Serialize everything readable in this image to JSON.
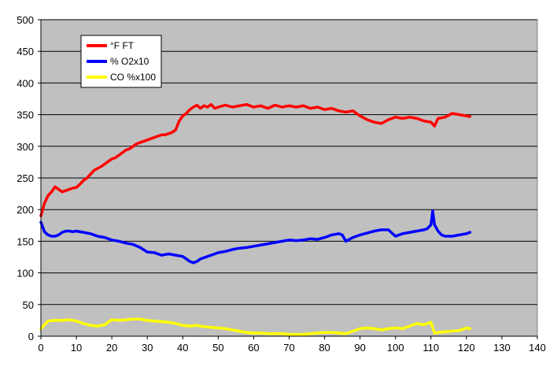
{
  "chart_data": {
    "type": "line",
    "title": "",
    "xlabel": "",
    "ylabel": "",
    "xlim": [
      0,
      140
    ],
    "ylim": [
      0,
      500
    ],
    "x_ticks": [
      0,
      10,
      20,
      30,
      40,
      50,
      60,
      70,
      80,
      90,
      100,
      110,
      120,
      130,
      140
    ],
    "y_ticks": [
      0,
      50,
      100,
      150,
      200,
      250,
      300,
      350,
      400,
      450,
      500
    ],
    "grid": "horizontal",
    "legend_position": "top-left",
    "plot_background": "#c0c0c0",
    "series": [
      {
        "name": "°F FT",
        "color": "#ff0000",
        "x": [
          0,
          1,
          2,
          3,
          4,
          5,
          6,
          7,
          8,
          9,
          10,
          11,
          12,
          13,
          14,
          15,
          16,
          17,
          18,
          19,
          20,
          21,
          22,
          23,
          24,
          25,
          26,
          27,
          28,
          29,
          30,
          31,
          32,
          33,
          34,
          35,
          36,
          37,
          38,
          39,
          40,
          41,
          42,
          43,
          44,
          45,
          46,
          47,
          48,
          49,
          50,
          52,
          54,
          56,
          58,
          60,
          62,
          64,
          66,
          68,
          70,
          72,
          74,
          76,
          78,
          80,
          82,
          84,
          86,
          88,
          90,
          92,
          94,
          96,
          98,
          100,
          102,
          104,
          106,
          108,
          110,
          111,
          112,
          114,
          116,
          118,
          120,
          121
        ],
        "values": [
          190,
          210,
          222,
          228,
          236,
          232,
          228,
          230,
          232,
          234,
          235,
          240,
          246,
          250,
          256,
          262,
          265,
          268,
          272,
          276,
          280,
          282,
          286,
          290,
          294,
          296,
          300,
          304,
          306,
          308,
          310,
          312,
          314,
          316,
          318,
          318,
          320,
          322,
          326,
          340,
          348,
          352,
          358,
          362,
          365,
          360,
          364,
          362,
          366,
          360,
          362,
          365,
          362,
          364,
          366,
          362,
          364,
          360,
          365,
          362,
          364,
          362,
          364,
          360,
          362,
          358,
          360,
          356,
          354,
          356,
          348,
          342,
          338,
          336,
          342,
          346,
          344,
          346,
          344,
          340,
          338,
          332,
          344,
          346,
          352,
          350,
          348,
          347
        ]
      },
      {
        "name": "% O2x10",
        "color": "#0000ff",
        "x": [
          0,
          1,
          2,
          3,
          4,
          5,
          6,
          7,
          8,
          9,
          10,
          12,
          14,
          16,
          18,
          20,
          22,
          24,
          26,
          28,
          30,
          32,
          34,
          36,
          38,
          40,
          42,
          43,
          44,
          45,
          46,
          48,
          50,
          52,
          54,
          56,
          58,
          60,
          62,
          64,
          66,
          68,
          70,
          72,
          74,
          76,
          78,
          80,
          82,
          84,
          85,
          86,
          88,
          90,
          92,
          94,
          96,
          98,
          100,
          102,
          104,
          106,
          108,
          109,
          110,
          110.5,
          111,
          112,
          113,
          114,
          116,
          118,
          120,
          121
        ],
        "values": [
          180,
          165,
          160,
          158,
          158,
          160,
          164,
          166,
          166,
          165,
          166,
          164,
          162,
          158,
          156,
          152,
          150,
          147,
          145,
          140,
          133,
          132,
          128,
          130,
          128,
          126,
          118,
          116,
          118,
          122,
          124,
          128,
          132,
          134,
          137,
          139,
          140,
          142,
          144,
          146,
          148,
          150,
          152,
          151,
          152,
          154,
          153,
          156,
          160,
          162,
          160,
          150,
          156,
          160,
          163,
          166,
          168,
          168,
          158,
          162,
          164,
          166,
          168,
          170,
          176,
          198,
          176,
          166,
          160,
          158,
          158,
          160,
          162,
          164
        ]
      },
      {
        "name": "CO %x100",
        "color": "#ffff00",
        "x": [
          0,
          1,
          2,
          4,
          6,
          8,
          10,
          12,
          14,
          16,
          18,
          20,
          22,
          24,
          26,
          28,
          30,
          32,
          34,
          36,
          38,
          40,
          42,
          44,
          46,
          48,
          50,
          52,
          54,
          56,
          58,
          60,
          62,
          64,
          66,
          68,
          70,
          72,
          74,
          76,
          78,
          80,
          82,
          84,
          86,
          88,
          90,
          92,
          94,
          96,
          98,
          100,
          102,
          104,
          106,
          108,
          110,
          111,
          112,
          114,
          116,
          118,
          120,
          121
        ],
        "values": [
          12,
          18,
          24,
          25,
          25,
          26,
          24,
          20,
          17,
          16,
          18,
          26,
          25,
          26,
          27,
          27,
          25,
          24,
          23,
          22,
          20,
          17,
          16,
          17,
          15,
          14,
          13,
          12,
          10,
          8,
          6,
          5,
          5,
          4,
          4,
          4,
          3,
          3,
          3,
          4,
          5,
          6,
          6,
          5,
          4,
          8,
          12,
          13,
          12,
          10,
          12,
          13,
          12,
          16,
          20,
          18,
          22,
          5,
          6,
          7,
          8,
          9,
          13,
          12
        ]
      }
    ]
  }
}
